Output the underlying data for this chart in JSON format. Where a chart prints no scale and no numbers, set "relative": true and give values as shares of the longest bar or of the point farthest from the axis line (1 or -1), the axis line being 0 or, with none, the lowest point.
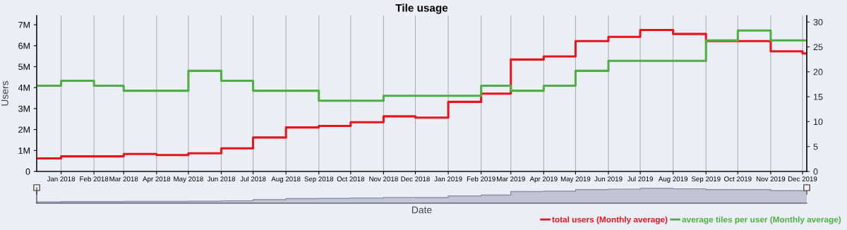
{
  "chart_data": [
    {
      "type": "step",
      "title": "Tile usage",
      "ylabel": "Users",
      "x": [
        "2017-12-09",
        "2018-01-01",
        "2018-02-01",
        "2018-03-01",
        "2018-04-01",
        "2018-05-01",
        "2018-06-01",
        "2018-07-01",
        "2018-08-01",
        "2018-09-01",
        "2018-10-01",
        "2018-11-01",
        "2018-12-01",
        "2019-01-01",
        "2019-02-01",
        "2019-03-01",
        "2019-04-01",
        "2019-05-01",
        "2019-06-01",
        "2019-07-01",
        "2019-08-01",
        "2019-09-01",
        "2019-10-01",
        "2019-11-01",
        "2019-12-01",
        "2019-12-05"
      ],
      "series": [
        {
          "name": "total users (Monthly average)",
          "color": "#e8141c",
          "values": [
            620000,
            720000,
            720000,
            830000,
            780000,
            870000,
            1100000,
            1620000,
            2100000,
            2170000,
            2350000,
            2630000,
            2570000,
            3320000,
            3710000,
            5340000,
            5490000,
            6220000,
            6420000,
            6750000,
            6560000,
            6220000,
            6220000,
            5730000,
            5630000,
            5630000
          ]
        },
        {
          "name": "average tiles per user (Monthly average)",
          "color": "#4cb040",
          "axis": "y2",
          "values": [
            17.2,
            18.2,
            17.2,
            16.2,
            16.2,
            20.2,
            18.2,
            16.2,
            16.2,
            14.2,
            14.2,
            15.2,
            15.2,
            15.2,
            17.2,
            16.2,
            17.2,
            20.2,
            22.2,
            22.2,
            22.2,
            26.3,
            28.3,
            26.3,
            26.3,
            26.3
          ]
        }
      ],
      "xlim": [
        "2017-12-09",
        "2019-12-05"
      ],
      "xticks": [
        {
          "value": "2018-01-01",
          "label": "Jan 2018"
        },
        {
          "value": "2018-02-01",
          "label": "Feb 2018"
        },
        {
          "value": "2018-03-01",
          "label": "Mar 2018"
        },
        {
          "value": "2018-04-01",
          "label": "Apr 2018"
        },
        {
          "value": "2018-05-01",
          "label": "May 2018"
        },
        {
          "value": "2018-06-01",
          "label": "Jun 2018"
        },
        {
          "value": "2018-07-01",
          "label": "Jul 2018"
        },
        {
          "value": "2018-08-01",
          "label": "Aug 2018"
        },
        {
          "value": "2018-09-01",
          "label": "Sep 2018"
        },
        {
          "value": "2018-10-01",
          "label": "Oct 2018"
        },
        {
          "value": "2018-11-01",
          "label": "Nov 2018"
        },
        {
          "value": "2018-12-01",
          "label": "Dec 2018"
        },
        {
          "value": "2019-01-01",
          "label": "Jan 2019"
        },
        {
          "value": "2019-02-01",
          "label": "Feb 2019"
        },
        {
          "value": "2019-03-01",
          "label": "Mar 2019"
        },
        {
          "value": "2019-04-01",
          "label": "Apr 2019"
        },
        {
          "value": "2019-05-01",
          "label": "May 2019"
        },
        {
          "value": "2019-06-01",
          "label": "Jun 2019"
        },
        {
          "value": "2019-07-01",
          "label": "Jul 2019"
        },
        {
          "value": "2019-08-01",
          "label": "Aug 2019"
        },
        {
          "value": "2019-09-01",
          "label": "Sep 2019"
        },
        {
          "value": "2019-10-01",
          "label": "Oct 2019"
        },
        {
          "value": "2019-11-01",
          "label": "Nov 2019"
        },
        {
          "value": "2019-12-01",
          "label": "Dec 2019"
        }
      ],
      "ylim": [
        0,
        7440000
      ],
      "yticks": [
        0,
        {
          "value": 1000000,
          "label": "1M"
        },
        {
          "value": 2000000,
          "label": "2M"
        },
        {
          "value": 3000000,
          "label": "3M"
        },
        {
          "value": 4000000,
          "label": "4M"
        },
        {
          "value": 5000000,
          "label": "5M"
        },
        {
          "value": 6000000,
          "label": "6M"
        },
        {
          "value": 7000000,
          "label": "7M"
        }
      ],
      "y2lim": [
        0,
        31.3
      ],
      "y2ticks": [
        0,
        5,
        10,
        15,
        20,
        25,
        30
      ],
      "grid": "x",
      "legend": "bottom right"
    },
    {
      "type": "area",
      "xlabel": "Date",
      "relative": true,
      "tick_labels": false,
      "x": [
        "2017-12-09",
        "2018-01-01",
        "2018-02-01",
        "2018-03-01",
        "2018-04-01",
        "2018-05-01",
        "2018-06-01",
        "2018-07-01",
        "2018-08-01",
        "2018-09-01",
        "2018-10-01",
        "2018-11-01",
        "2018-12-01",
        "2019-01-01",
        "2019-02-01",
        "2019-03-01",
        "2019-04-01",
        "2019-05-01",
        "2019-06-01",
        "2019-07-01",
        "2019-08-01",
        "2019-09-01",
        "2019-10-01",
        "2019-11-01",
        "2019-12-01",
        "2019-12-05"
      ],
      "xlim": [
        "2017-12-09",
        "2019-12-05"
      ],
      "series": [
        {
          "color": "#8a90a8",
          "values": [
            0.09,
            0.11,
            0.11,
            0.12,
            0.12,
            0.13,
            0.16,
            0.24,
            0.31,
            0.32,
            0.35,
            0.39,
            0.38,
            0.49,
            0.55,
            0.79,
            0.81,
            0.92,
            0.95,
            1,
            0.97,
            0.92,
            0.92,
            0.85,
            0.83,
            0.83
          ]
        }
      ]
    }
  ]
}
